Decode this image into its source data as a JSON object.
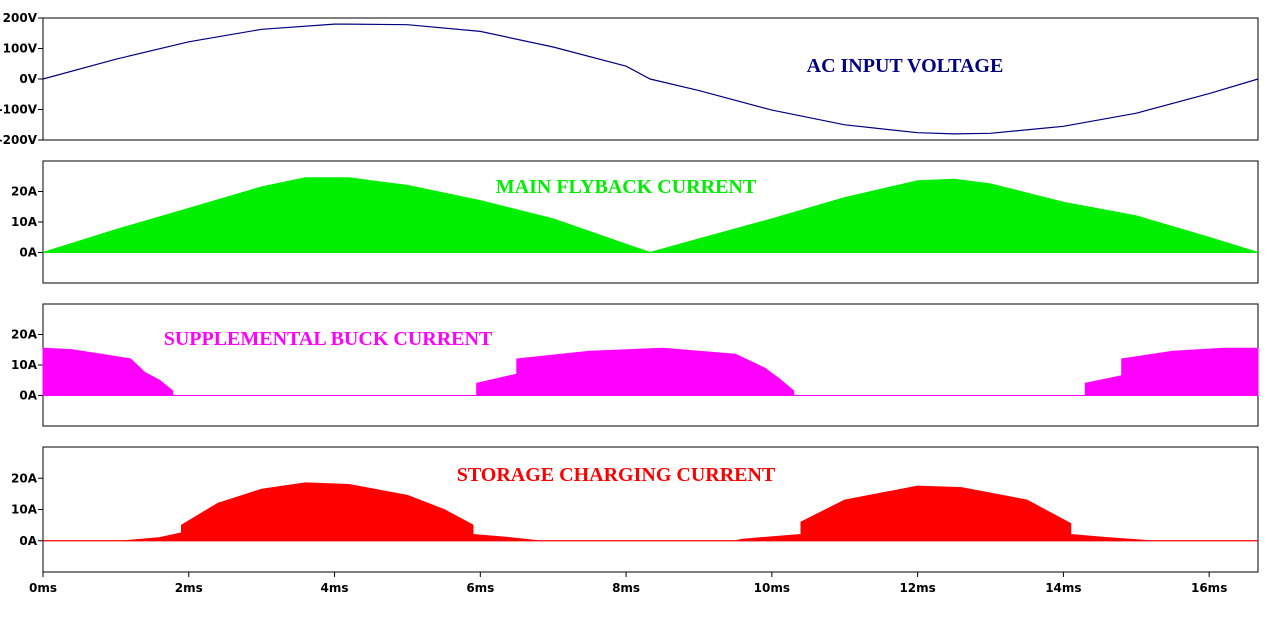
{
  "chart_data": [
    {
      "type": "line",
      "title": "AC INPUT VOLTAGE",
      "color": "#000080",
      "xunit": "ms",
      "xlim": [
        0,
        16.67
      ],
      "ylim": [
        -200,
        200
      ],
      "yticks": [
        "200V",
        "100V",
        "0V",
        "-100V",
        "-200V"
      ],
      "ytick_values": [
        200,
        100,
        0,
        -100,
        -200
      ],
      "series": [
        {
          "values_description": "sine",
          "x": [
            0,
            1,
            2,
            3,
            4,
            4.17,
            5,
            6,
            7,
            8,
            8.33,
            9,
            10,
            11,
            12,
            12.5,
            13,
            14,
            15,
            16,
            16.67
          ],
          "y": [
            0,
            65,
            122,
            163,
            180,
            180,
            178,
            156,
            105,
            42,
            0,
            -38,
            -102,
            -150,
            -176,
            -180,
            -178,
            -155,
            -112,
            -48,
            0
          ]
        }
      ]
    },
    {
      "type": "area",
      "title": "MAIN FLYBACK CURRENT",
      "color": "#00ee00",
      "xunit": "ms",
      "xlim": [
        0,
        16.67
      ],
      "ylim": [
        -10,
        30
      ],
      "yticks": [
        "20A",
        "10A",
        "0A"
      ],
      "ytick_values": [
        20,
        10,
        0
      ],
      "series": [
        {
          "x": [
            0,
            1,
            2,
            3,
            3.6,
            4.2,
            5,
            6,
            7,
            8.33,
            9,
            10,
            11,
            12,
            12.5,
            13,
            14,
            15,
            16,
            16.67
          ],
          "y": [
            0,
            7.5,
            14.5,
            21.5,
            24.5,
            24.5,
            22,
            17,
            11,
            0,
            4.5,
            11,
            18,
            23.5,
            24,
            22.5,
            16.5,
            12,
            5,
            0
          ]
        }
      ]
    },
    {
      "type": "area",
      "title": "SUPPLEMENTAL BUCK CURRENT",
      "color": "#ff00ff",
      "xunit": "ms",
      "xlim": [
        0,
        16.67
      ],
      "ylim": [
        -10,
        30
      ],
      "yticks": [
        "20A",
        "10A",
        "0A"
      ],
      "ytick_values": [
        20,
        10,
        0
      ],
      "series": [
        {
          "x": [
            0,
            0,
            0.4,
            0.8,
            1.2,
            1.4,
            1.6,
            1.78,
            1.78,
            5.95,
            5.95,
            6.5,
            6.5,
            7.5,
            8.5,
            9.5,
            9.9,
            10.1,
            10.3,
            10.3,
            14.3,
            14.3,
            14.8,
            14.8,
            15.5,
            16.2,
            16.67,
            16.67
          ],
          "y": [
            0,
            15.5,
            15,
            13.5,
            12,
            7.5,
            5,
            1.5,
            0,
            0,
            4,
            7,
            12,
            14.5,
            15.5,
            13.5,
            9,
            5.5,
            1.5,
            0,
            0,
            4,
            6.5,
            12,
            14.5,
            15.5,
            15.5,
            0
          ]
        }
      ]
    },
    {
      "type": "area",
      "title": "STORAGE CHARGING CURRENT",
      "color": "#ff0000",
      "xunit": "ms",
      "xlim": [
        0,
        16.67
      ],
      "ylim": [
        -10,
        30
      ],
      "yticks": [
        "20A",
        "10A",
        "0A"
      ],
      "ytick_values": [
        20,
        10,
        0
      ],
      "xticks": [
        "0ms",
        "2ms",
        "4ms",
        "6ms",
        "8ms",
        "10ms",
        "12ms",
        "14ms",
        "16ms"
      ],
      "xtick_values": [
        0,
        2,
        4,
        6,
        8,
        10,
        12,
        14,
        16
      ],
      "series": [
        {
          "x": [
            0,
            1.1,
            1.6,
            1.9,
            1.9,
            2.4,
            3,
            3.6,
            4.2,
            5,
            5.5,
            5.9,
            5.9,
            6.4,
            6.8,
            8.4,
            9.5,
            9.6,
            10.4,
            10.4,
            11,
            12,
            12.6,
            13.5,
            14.1,
            14.1,
            14.6,
            15.2,
            16.67
          ],
          "y": [
            0,
            0,
            1,
            2.5,
            5,
            12,
            16.5,
            18.5,
            18,
            14.5,
            10,
            5,
            2,
            1,
            0,
            0,
            0,
            0.5,
            2,
            6,
            13,
            17.5,
            17,
            13,
            5.5,
            2,
            1,
            0,
            0
          ]
        }
      ]
    }
  ]
}
